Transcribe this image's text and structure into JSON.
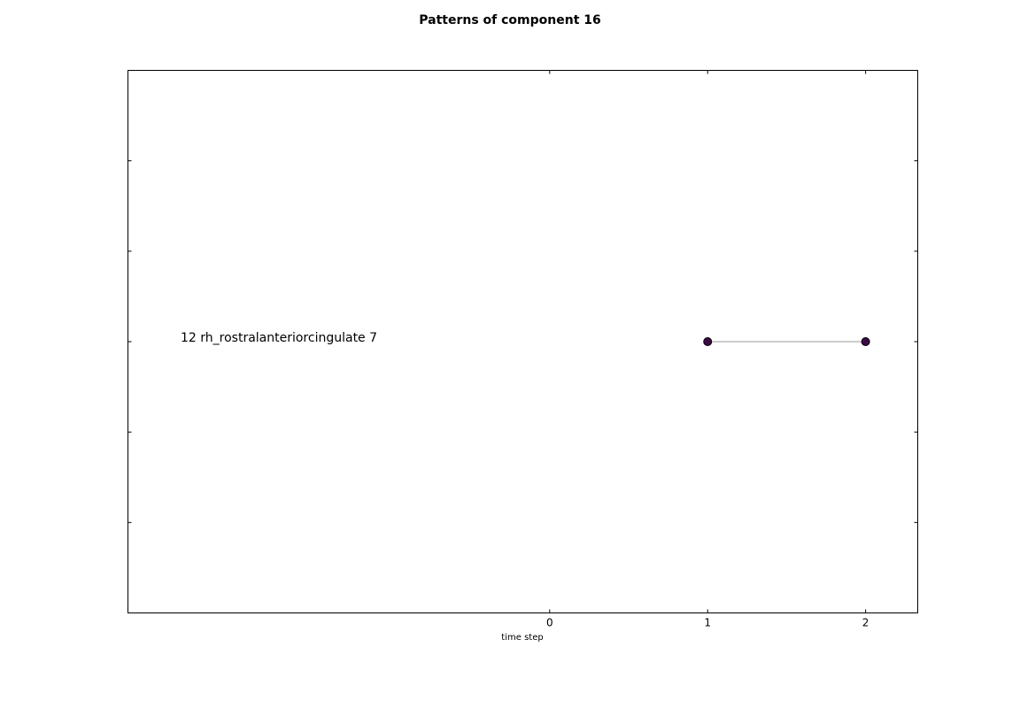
{
  "chart_data": {
    "type": "line",
    "title": "Patterns of component 16",
    "xlabel": "time step",
    "ylabel": "",
    "xlim": [
      -2.67,
      2.33
    ],
    "ylim": [
      0,
      6
    ],
    "x_ticks": [
      0,
      1,
      2
    ],
    "x_tick_labels": [
      "0",
      "1",
      "2"
    ],
    "y_ticks": [
      1,
      2,
      3,
      4,
      5
    ],
    "grid": false,
    "rows": [
      {
        "label": "12 rh_rostralanteriorcingulate 7",
        "y": 3,
        "points": [
          {
            "x": 1,
            "y": 3
          },
          {
            "x": 2,
            "y": 3
          }
        ]
      }
    ],
    "colors": {
      "marker_fill": "#3b0a45",
      "marker_edge": "#000000",
      "line": "#999999",
      "frame": "#000000"
    }
  }
}
